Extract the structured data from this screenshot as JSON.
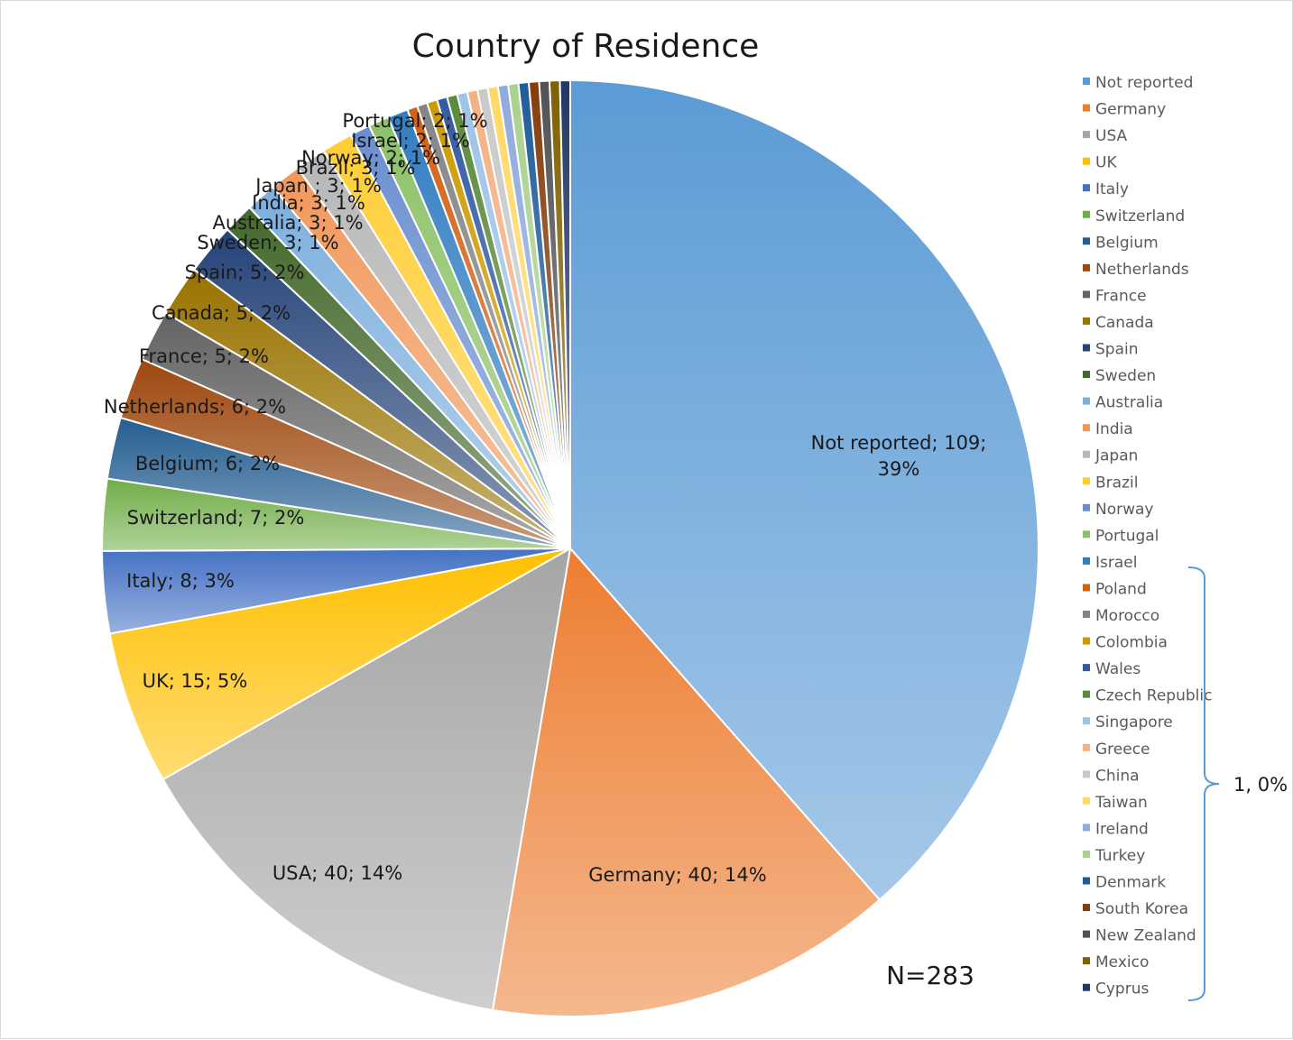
{
  "chart_data": {
    "type": "pie",
    "title": "Country of Residence",
    "note": "N=283",
    "total": 283,
    "slices": [
      {
        "name": "Not reported",
        "value": 109,
        "label": "Not reported; 109; 39%",
        "color": "#5b9bd5"
      },
      {
        "name": "Germany",
        "value": 40,
        "label": "Germany; 40; 14%",
        "color": "#ed7d31"
      },
      {
        "name": "USA",
        "value": 40,
        "label": "USA; 40; 14%",
        "color": "#a5a5a5"
      },
      {
        "name": "UK",
        "value": 15,
        "label": "UK; 15; 5%",
        "color": "#ffc000"
      },
      {
        "name": "Italy",
        "value": 8,
        "label": "Italy; 8; 3%",
        "color": "#4472c4"
      },
      {
        "name": "Switzerland",
        "value": 7,
        "label": "Switzerland; 7; 2%",
        "color": "#70ad47"
      },
      {
        "name": "Belgium",
        "value": 6,
        "label": "Belgium; 6; 2%",
        "color": "#255e91"
      },
      {
        "name": "Netherlands",
        "value": 6,
        "label": "Netherlands; 6; 2%",
        "color": "#9e480e"
      },
      {
        "name": "France",
        "value": 5,
        "label": "France; 5; 2%",
        "color": "#636363"
      },
      {
        "name": "Canada",
        "value": 5,
        "label": "Canada; 5; 2%",
        "color": "#997300"
      },
      {
        "name": "Spain",
        "value": 5,
        "label": "Spain; 5; 2%",
        "color": "#264478"
      },
      {
        "name": "Sweden",
        "value": 3,
        "label": "Sweden; 3; 1%",
        "color": "#43682b"
      },
      {
        "name": "Australia",
        "value": 3,
        "label": "Australia; 3; 1%",
        "color": "#7cafdd"
      },
      {
        "name": "India",
        "value": 3,
        "label": "India; 3; 1%",
        "color": "#f1975a"
      },
      {
        "name": "Japan",
        "value": 3,
        "label": "Japan ; 3; 1%",
        "color": "#b7b7b7"
      },
      {
        "name": "Brazil",
        "value": 3,
        "label": "Brazil; 3; 1%",
        "color": "#ffcd33"
      },
      {
        "name": "Norway",
        "value": 2,
        "label": "Norway; 2; 1%",
        "color": "#698ed0"
      },
      {
        "name": "Portugal",
        "value": 2,
        "label": "Portugal; 2; 1%",
        "color": "#8cc168"
      },
      {
        "name": "Israel",
        "value": 2,
        "label": "Israel; 2; 1%",
        "color": "#327dc2"
      },
      {
        "name": "Poland",
        "value": 1,
        "label": "",
        "color": "#d26012"
      },
      {
        "name": "Morocco",
        "value": 1,
        "label": "",
        "color": "#848484"
      },
      {
        "name": "Colombia",
        "value": 1,
        "label": "",
        "color": "#cc9a00"
      },
      {
        "name": "Wales",
        "value": 1,
        "label": "",
        "color": "#335aa1"
      },
      {
        "name": "Czech Republic",
        "value": 1,
        "label": "",
        "color": "#5a8a39"
      },
      {
        "name": "Singapore",
        "value": 1,
        "label": "",
        "color": "#9dc3e6"
      },
      {
        "name": "Greece",
        "value": 1,
        "label": "",
        "color": "#f4b183"
      },
      {
        "name": "China",
        "value": 1,
        "label": "",
        "color": "#c9c9c9"
      },
      {
        "name": "Taiwan",
        "value": 1,
        "label": "",
        "color": "#ffd966"
      },
      {
        "name": "Ireland",
        "value": 1,
        "label": "",
        "color": "#8faadc"
      },
      {
        "name": "Turkey",
        "value": 1,
        "label": "",
        "color": "#a9d18e"
      },
      {
        "name": "Denmark",
        "value": 1,
        "label": "",
        "color": "#1f5c99"
      },
      {
        "name": "South Korea",
        "value": 1,
        "label": "",
        "color": "#843c0c"
      },
      {
        "name": "New Zealand",
        "value": 1,
        "label": "",
        "color": "#525252"
      },
      {
        "name": "Mexico",
        "value": 1,
        "label": "",
        "color": "#7f6000"
      },
      {
        "name": "Cyprus",
        "value": 1,
        "label": "",
        "color": "#203864"
      }
    ],
    "legend_position": "right",
    "group_annotation": "1, 0%",
    "group_annotation_range": [
      "Israel",
      "Cyprus"
    ]
  }
}
